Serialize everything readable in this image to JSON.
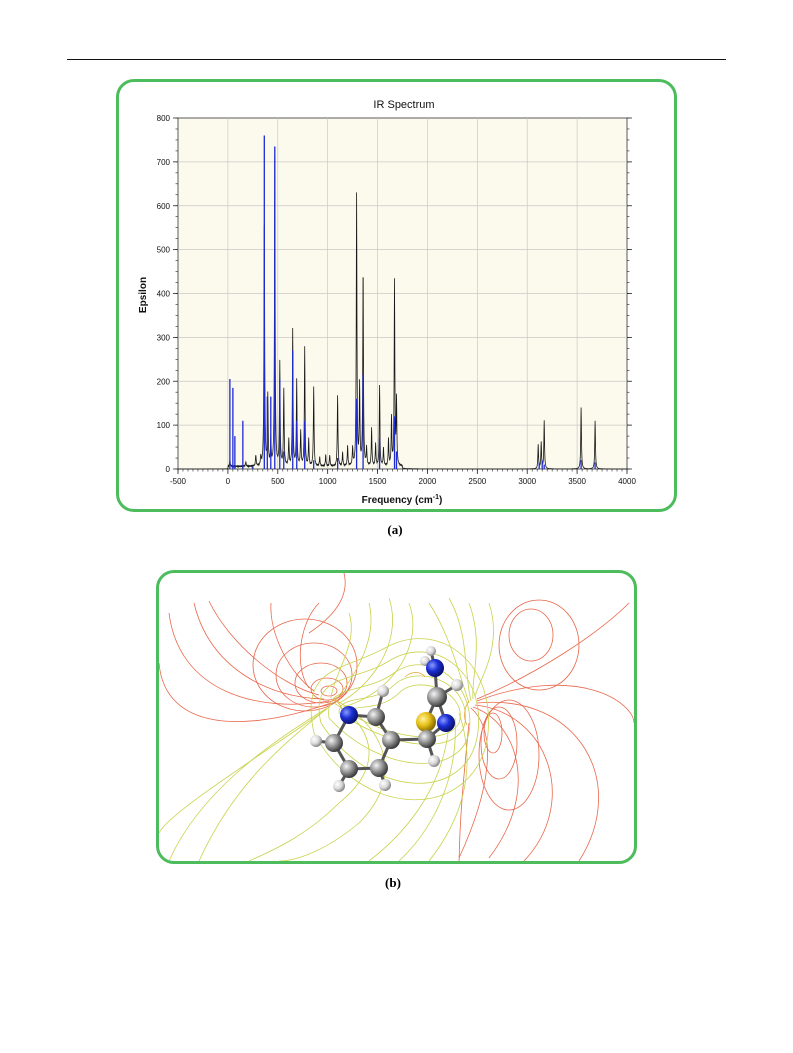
{
  "panel_a": {
    "caption": "(a)",
    "chart_data": {
      "type": "line",
      "title": "IR Spectrum",
      "xlabel": "Frequency (cm⁻¹)",
      "ylabel": "Epsilon",
      "xlim": [
        -500,
        4000
      ],
      "ylim": [
        0,
        800
      ],
      "xticks": [
        "-500",
        "0",
        "500",
        "1000",
        "1500",
        "2000",
        "2500",
        "3000",
        "3500",
        "4000"
      ],
      "yticks": [
        "0",
        "100",
        "200",
        "300",
        "400",
        "500",
        "600",
        "700",
        "800"
      ],
      "grid": true,
      "background": "#fbfaec",
      "series": [
        {
          "color": "#1a1a1a",
          "style": "broadened spectrum",
          "peaks": [
            [
              20,
              15
            ],
            [
              180,
              10
            ],
            [
              280,
              25
            ],
            [
              330,
              20
            ],
            [
              365,
              580
            ],
            [
              400,
              160
            ],
            [
              430,
              60
            ],
            [
              470,
              700
            ],
            [
              520,
              235
            ],
            [
              560,
              175
            ],
            [
              610,
              60
            ],
            [
              650,
              310
            ],
            [
              690,
              195
            ],
            [
              730,
              80
            ],
            [
              770,
              270
            ],
            [
              810,
              60
            ],
            [
              860,
              180
            ],
            [
              920,
              20
            ],
            [
              980,
              25
            ],
            [
              1020,
              25
            ],
            [
              1100,
              160
            ],
            [
              1150,
              30
            ],
            [
              1200,
              45
            ],
            [
              1250,
              40
            ],
            [
              1290,
              620
            ],
            [
              1320,
              180
            ],
            [
              1355,
              450
            ],
            [
              1390,
              40
            ],
            [
              1440,
              85
            ],
            [
              1480,
              50
            ],
            [
              1520,
              185
            ],
            [
              1560,
              40
            ],
            [
              1610,
              60
            ],
            [
              1640,
              110
            ],
            [
              1670,
              420
            ],
            [
              1690,
              150
            ],
            [
              3110,
              55
            ],
            [
              3140,
              60
            ],
            [
              3170,
              110
            ],
            [
              3540,
              140
            ],
            [
              3680,
              110
            ]
          ]
        },
        {
          "color": "#1f2ad6",
          "style": "stick spectrum",
          "peaks": [
            [
              20,
              205
            ],
            [
              50,
              185
            ],
            [
              70,
              75
            ],
            [
              150,
              110
            ],
            [
              250,
              5
            ],
            [
              365,
              760
            ],
            [
              395,
              165
            ],
            [
              430,
              165
            ],
            [
              470,
              735
            ],
            [
              520,
              205
            ],
            [
              560,
              40
            ],
            [
              650,
              270
            ],
            [
              690,
              110
            ],
            [
              770,
              110
            ],
            [
              860,
              20
            ],
            [
              1100,
              25
            ],
            [
              1290,
              160
            ],
            [
              1355,
              215
            ],
            [
              1520,
              70
            ],
            [
              1670,
              120
            ],
            [
              1690,
              40
            ],
            [
              3120,
              15
            ],
            [
              3150,
              20
            ],
            [
              3170,
              10
            ],
            [
              3540,
              20
            ],
            [
              3680,
              15
            ]
          ]
        }
      ]
    }
  },
  "panel_b": {
    "caption": "(b)",
    "atom_colors": {
      "carbon": "#8c8c8c",
      "hydrogen": "#e6e6e6",
      "nitrogen": "#1c2fd6",
      "sulfur": "#e8c21a"
    },
    "contour_colors": {
      "outer": "#e8664a",
      "inner": "#c9d24a",
      "mid": "#e6a83c"
    }
  }
}
